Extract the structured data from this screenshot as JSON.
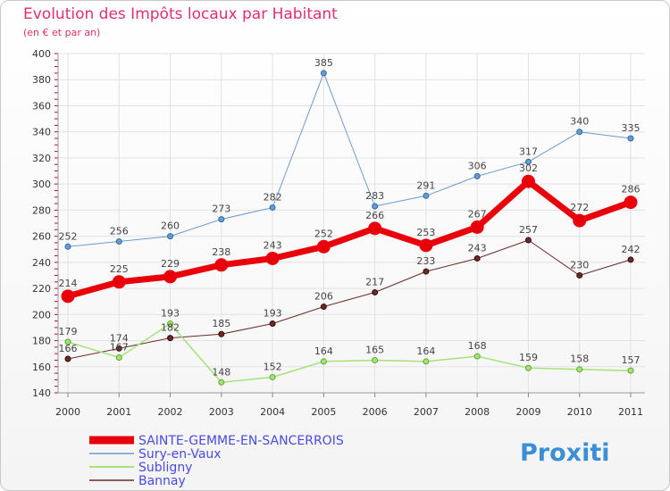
{
  "chart_data": {
    "type": "line",
    "title": "Evolution des Impôts locaux par Habitant",
    "subtitle": "(en € et par an)",
    "xlabel": "",
    "ylabel": "",
    "categories": [
      "2000",
      "2001",
      "2002",
      "2003",
      "2004",
      "2005",
      "2006",
      "2007",
      "2008",
      "2009",
      "2010",
      "2011"
    ],
    "ylim": [
      140,
      400
    ],
    "yticks": [
      140,
      160,
      180,
      200,
      220,
      240,
      260,
      280,
      300,
      320,
      340,
      360,
      380,
      400
    ],
    "grid": true,
    "legend_position": "bottom-left",
    "series": [
      {
        "name": "SAINTE-GEMME-EN-SANCERROIS",
        "color": "#e8000b",
        "values": [
          214,
          225,
          229,
          238,
          243,
          252,
          266,
          253,
          267,
          302,
          272,
          286
        ]
      },
      {
        "name": "Sury-en-Vaux",
        "color": "#6a9bcd",
        "values": [
          252,
          256,
          260,
          273,
          282,
          385,
          283,
          291,
          306,
          317,
          340,
          335
        ]
      },
      {
        "name": "Subligny",
        "color": "#a6e27a",
        "values": [
          179,
          167,
          193,
          148,
          152,
          164,
          165,
          164,
          168,
          159,
          158,
          157
        ]
      },
      {
        "name": "Bannay",
        "color": "#6b2a2a",
        "values": [
          166,
          174,
          182,
          185,
          193,
          206,
          217,
          233,
          243,
          257,
          230,
          242
        ]
      }
    ]
  },
  "logo": {
    "text": "Proxiti"
  }
}
